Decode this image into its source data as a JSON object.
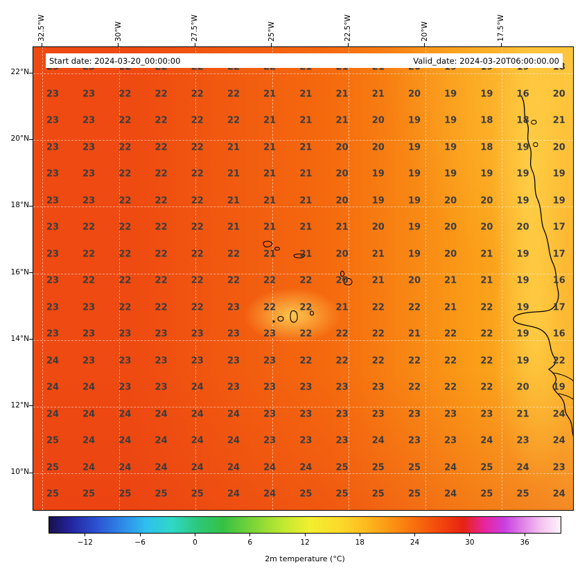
{
  "header": {
    "start_date_label": "Start date: 2024-03-20_00:00:00",
    "valid_date_label": "Valid_date: 2024-03-20T06:00:00.00"
  },
  "chart_data": {
    "type": "heatmap",
    "title": "",
    "x_ticks": [
      "32.5°W",
      "30°W",
      "27.5°W",
      "25°W",
      "22.5°W",
      "20°W",
      "17.5°W"
    ],
    "y_ticks": [
      "22°N",
      "20°N",
      "18°N",
      "16°N",
      "14°N",
      "12°N",
      "10°N"
    ],
    "annotations": [
      "Start date: 2024-03-20_00:00:00",
      "Valid_date: 2024-03-20T06:00:00.00"
    ],
    "values": [
      [
        23,
        23,
        22,
        22,
        22,
        22,
        22,
        21,
        21,
        21,
        20,
        19,
        19,
        19,
        18
      ],
      [
        23,
        23,
        22,
        22,
        22,
        22,
        21,
        21,
        21,
        21,
        20,
        19,
        19,
        16,
        20
      ],
      [
        23,
        23,
        22,
        22,
        22,
        22,
        21,
        21,
        21,
        20,
        19,
        19,
        18,
        18,
        21
      ],
      [
        23,
        23,
        22,
        22,
        22,
        21,
        21,
        21,
        20,
        20,
        19,
        19,
        18,
        19,
        20
      ],
      [
        23,
        23,
        22,
        22,
        22,
        21,
        21,
        21,
        20,
        19,
        19,
        19,
        19,
        19,
        19
      ],
      [
        23,
        23,
        22,
        22,
        22,
        21,
        21,
        21,
        20,
        19,
        19,
        20,
        20,
        19,
        19
      ],
      [
        23,
        22,
        22,
        22,
        22,
        21,
        21,
        21,
        21,
        20,
        19,
        20,
        20,
        20,
        17
      ],
      [
        23,
        22,
        22,
        22,
        22,
        22,
        21,
        21,
        20,
        21,
        19,
        20,
        21,
        19,
        17
      ],
      [
        23,
        22,
        22,
        22,
        22,
        22,
        22,
        22,
        20,
        21,
        20,
        21,
        21,
        19,
        16
      ],
      [
        23,
        23,
        22,
        22,
        22,
        23,
        22,
        22,
        21,
        22,
        22,
        21,
        22,
        19,
        17
      ],
      [
        23,
        23,
        23,
        23,
        23,
        23,
        23,
        22,
        22,
        22,
        21,
        22,
        22,
        19,
        16
      ],
      [
        24,
        23,
        23,
        23,
        23,
        23,
        23,
        22,
        22,
        22,
        22,
        22,
        22,
        19,
        22
      ],
      [
        24,
        24,
        23,
        23,
        24,
        23,
        23,
        23,
        23,
        23,
        22,
        22,
        22,
        20,
        19
      ],
      [
        24,
        24,
        24,
        24,
        24,
        24,
        23,
        23,
        23,
        23,
        23,
        23,
        23,
        21,
        24
      ],
      [
        25,
        24,
        24,
        24,
        24,
        24,
        23,
        23,
        23,
        24,
        23,
        23,
        24,
        23,
        24
      ],
      [
        25,
        24,
        24,
        24,
        24,
        24,
        24,
        24,
        25,
        25,
        25,
        24,
        25,
        24,
        23
      ],
      [
        25,
        25,
        25,
        25,
        25,
        24,
        24,
        25,
        25,
        25,
        25,
        24,
        25,
        25,
        24
      ]
    ],
    "colorbar": {
      "label": "2m temperature (°C)",
      "ticks": [
        -12,
        -6,
        0,
        6,
        12,
        18,
        24,
        30,
        36
      ],
      "approx_range": [
        -16,
        40
      ],
      "stops": [
        [
          "0%",
          "#19104e"
        ],
        [
          "4%",
          "#24239b"
        ],
        [
          "9%",
          "#2b4fd0"
        ],
        [
          "14%",
          "#2e86e8"
        ],
        [
          "19%",
          "#2fc0ef"
        ],
        [
          "24%",
          "#2fd8c4"
        ],
        [
          "29%",
          "#2cc87b"
        ],
        [
          "34%",
          "#35c143"
        ],
        [
          "40%",
          "#7ed637"
        ],
        [
          "46%",
          "#c3e932"
        ],
        [
          "51%",
          "#f2ef2f"
        ],
        [
          "57%",
          "#fcd92b"
        ],
        [
          "62%",
          "#fdba1f"
        ],
        [
          "67%",
          "#fb9314"
        ],
        [
          "72%",
          "#f76b0d"
        ],
        [
          "77%",
          "#f2420c"
        ],
        [
          "81%",
          "#e62313"
        ],
        [
          "85%",
          "#e9249a"
        ],
        [
          "89%",
          "#c93ee0"
        ],
        [
          "93%",
          "#e18ae8"
        ],
        [
          "96%",
          "#f3c0f0"
        ],
        [
          "100%",
          "#fdf3fb"
        ]
      ]
    },
    "legend_position": "bottom"
  },
  "colors": {
    "field_left": "#ee4a11",
    "field_mid": "#f56a0e",
    "field_right_orange": "#fb9e18",
    "field_far_right": "#fcb62f",
    "coast_yellow": "#ffd84e",
    "island_yellow": "#ffdf5e",
    "bottom_red": "#e63914",
    "grid_value_text": "#3c3c3c",
    "coastline": "#000000"
  }
}
